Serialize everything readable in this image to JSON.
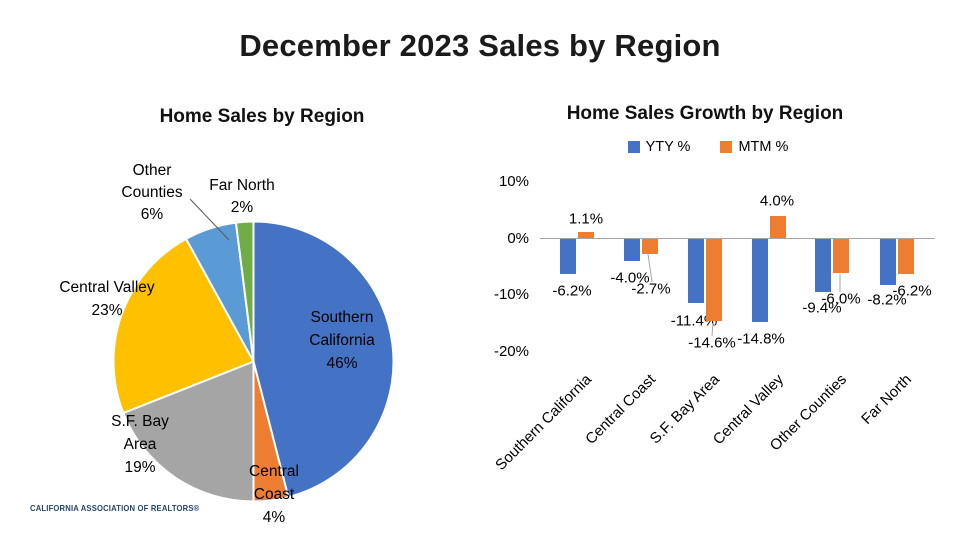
{
  "slide_title": "December 2023 Sales by Region",
  "footer": {
    "logo_text": "CALIFORNIA ASSOCIATION OF REALTORS®"
  },
  "colors": {
    "yty_blue": "#4472C4",
    "mtm_orange": "#ED7D31",
    "axis_gray": "#a6a6a6"
  },
  "chart_data": [
    {
      "type": "pie",
      "title": "Home Sales by Region",
      "categories": [
        "Southern California",
        "Central Coast",
        "S.F. Bay Area",
        "Central Valley",
        "Other Counties",
        "Far North"
      ],
      "values": [
        46,
        4,
        19,
        23,
        6,
        2
      ],
      "unit": "%",
      "colors": [
        "#4472C4",
        "#ED7D31",
        "#A5A5A5",
        "#FFC000",
        "#5B9BD5",
        "#70AD47"
      ],
      "labels": [
        "Southern\nCalifornia\n46%",
        "Central\nCoast\n4%",
        "S.F. Bay\nArea\n19%",
        "Central Valley\n23%",
        "Other\nCounties\n6%",
        "Far North\n2%"
      ],
      "start_angle_deg": -90,
      "direction": "clockwise"
    },
    {
      "type": "bar",
      "title": "Home Sales Growth by Region",
      "categories": [
        "Southern California",
        "Central Coast",
        "S.F. Bay Area",
        "Central Valley",
        "Other Counties",
        "Far North"
      ],
      "series": [
        {
          "name": "YTY %",
          "color": "#4472C4",
          "values": [
            -6.2,
            -4.0,
            -11.4,
            -14.8,
            -9.4,
            -8.2
          ]
        },
        {
          "name": "MTM %",
          "color": "#ED7D31",
          "values": [
            1.1,
            -2.7,
            -14.6,
            4.0,
            -6.0,
            -6.2
          ]
        }
      ],
      "data_labels": [
        [
          "-6.2%",
          "-4.0%",
          "-11.4%",
          "-14.8%",
          "-9.4%",
          "-8.2%"
        ],
        [
          "1.1%",
          "-2.7%",
          "-14.6%",
          "4.0%",
          "-6.0%",
          "-6.2%"
        ]
      ],
      "y_ticks": [
        "10%",
        "0%",
        "-10%",
        "-20%"
      ],
      "ylim": [
        -20,
        10
      ],
      "grid": false,
      "legend_position": "top"
    }
  ]
}
